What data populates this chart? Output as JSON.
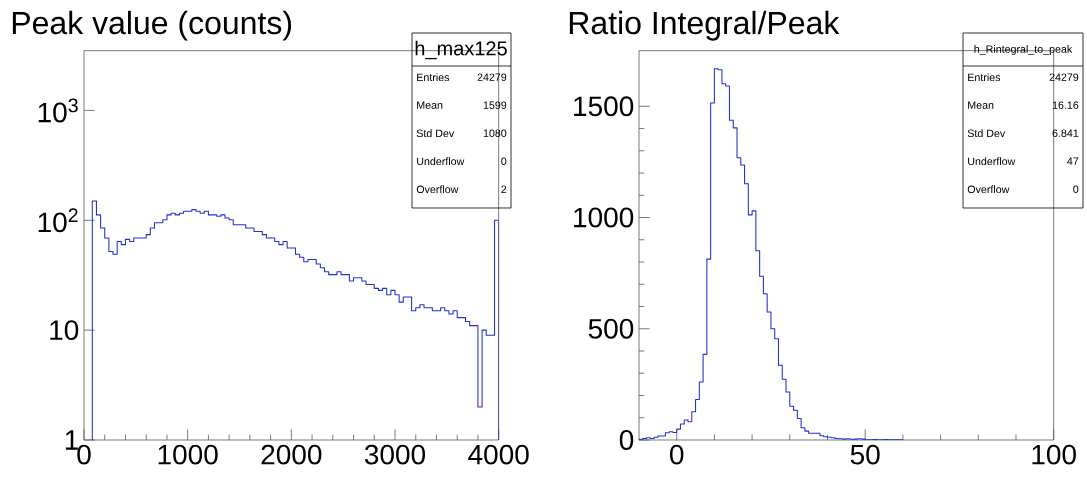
{
  "chart_data": [
    {
      "type": "histogram",
      "title": "Peak value (counts)",
      "color": "#2233cc",
      "log": "y",
      "bins": [
        80,
        120,
        160,
        200,
        240,
        280,
        320,
        360,
        400,
        440,
        480,
        520,
        560,
        600,
        640,
        680,
        720,
        760,
        800,
        840,
        880,
        920,
        960,
        1000,
        1040,
        1080,
        1120,
        1160,
        1200,
        1240,
        1280,
        1320,
        1360,
        1400,
        1440,
        1480,
        1520,
        1560,
        1600,
        1640,
        1680,
        1720,
        1760,
        1800,
        1840,
        1880,
        1920,
        1960,
        2000,
        2040,
        2080,
        2120,
        2160,
        2200,
        2240,
        2280,
        2320,
        2360,
        2400,
        2440,
        2480,
        2520,
        2560,
        2600,
        2640,
        2680,
        2720,
        2760,
        2800,
        2840,
        2880,
        2920,
        2960,
        3000,
        3040,
        3080,
        3120,
        3160,
        3200,
        3240,
        3280,
        3320,
        3360,
        3400,
        3440,
        3480,
        3520,
        3560,
        3600,
        3640,
        3680,
        3720,
        3760,
        3800,
        3840,
        3880,
        3920,
        3960,
        4000
      ],
      "values": [
        150,
        112,
        85,
        69,
        52,
        49,
        64,
        60,
        67,
        64,
        69,
        69,
        69,
        74,
        85,
        95,
        95,
        101,
        112,
        116,
        112,
        116,
        121,
        121,
        125,
        121,
        116,
        121,
        112,
        112,
        109,
        112,
        105,
        101,
        91,
        91,
        91,
        85,
        85,
        79,
        79,
        74,
        69,
        69,
        64,
        60,
        64,
        56,
        56,
        49,
        46,
        42,
        44,
        44,
        40,
        37,
        34,
        32,
        32,
        34,
        32,
        32,
        28,
        30,
        30,
        28,
        26,
        26,
        24,
        23,
        24,
        21,
        23,
        21,
        18,
        20,
        20,
        15,
        16,
        17,
        16,
        16,
        15,
        15,
        16,
        15,
        14,
        15,
        13,
        13,
        12,
        11,
        11,
        2,
        10,
        9,
        9,
        100
      ],
      "xlim": [
        0,
        4000
      ],
      "ylim": [
        1,
        3500
      ],
      "xticks": [
        0,
        1000,
        2000,
        3000,
        4000
      ],
      "yticks": [
        1,
        10,
        {
          "value": 100,
          "label": "10$^{2}$"
        },
        {
          "value": 1000,
          "label": "10$^{3}$"
        }
      ],
      "annotations": [
        "h_max125",
        "Entries",
        "24279",
        "Mean",
        "1599",
        "Std Dev",
        "1080",
        "Underflow",
        "0",
        "Overflow",
        "2"
      ]
    },
    {
      "type": "histogram",
      "title": "Ratio Integral/Peak",
      "color": "#2233cc",
      "bins": [
        -10,
        -9,
        -8,
        -7,
        -6,
        -5,
        -4,
        -3,
        -2,
        -1,
        0,
        1,
        2,
        3,
        4,
        5,
        6,
        7,
        8,
        9,
        10,
        11,
        12,
        13,
        14,
        15,
        16,
        17,
        18,
        19,
        20,
        21,
        22,
        23,
        24,
        25,
        26,
        27,
        28,
        29,
        30,
        31,
        32,
        33,
        34,
        35,
        36,
        37,
        38,
        39,
        40,
        41,
        42,
        43,
        44,
        45,
        46,
        47,
        48,
        49,
        50,
        51,
        52,
        53,
        54,
        55,
        56,
        57,
        58,
        59,
        60
      ],
      "values": [
        3,
        7,
        10,
        7,
        12,
        18,
        18,
        33,
        37,
        34,
        49,
        72,
        90,
        82,
        127,
        182,
        261,
        385,
        813,
        1515,
        1669,
        1664,
        1601,
        1591,
        1437,
        1403,
        1269,
        1236,
        1152,
        1012,
        1030,
        851,
        736,
        657,
        575,
        500,
        455,
        336,
        273,
        216,
        152,
        134,
        97,
        55,
        40,
        30,
        30,
        30,
        19,
        15,
        12,
        10,
        7,
        6,
        4,
        6,
        3,
        4,
        6,
        4,
        1,
        1,
        2,
        1,
        1,
        2,
        1,
        1,
        1,
        1
      ],
      "xlim": [
        -10,
        100
      ],
      "ylim": [
        0,
        1750
      ],
      "xticks": [
        0,
        50,
        100
      ],
      "yticks": [
        0,
        500,
        1000,
        1500
      ],
      "annotations": [
        "h_Rintegral_to_peak",
        "Entries",
        "24279",
        "Mean",
        "16.16",
        "Std Dev",
        "6.841",
        "Underflow",
        "47",
        "Overflow",
        "0"
      ]
    }
  ]
}
